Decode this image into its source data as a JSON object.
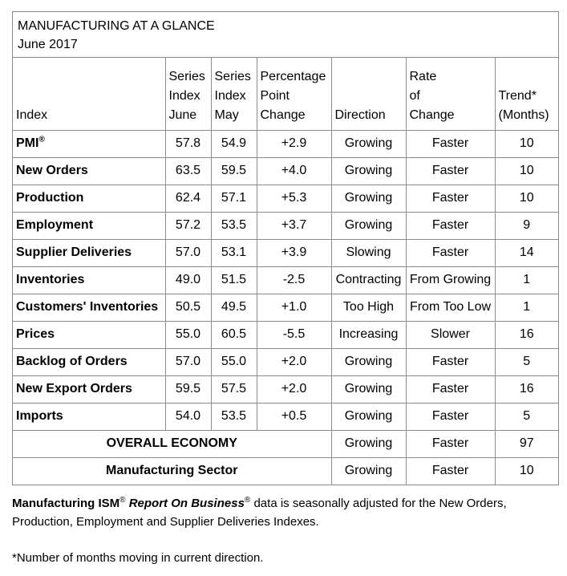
{
  "title": "MANUFACTURING AT A GLANCE",
  "subtitle": "June 2017",
  "headers": {
    "index": "Index",
    "june": [
      "Series",
      "Index",
      "June"
    ],
    "may": [
      "Series",
      "Index",
      "May"
    ],
    "change": [
      "Percentage",
      "Point",
      "Change"
    ],
    "direction": "Direction",
    "rate": [
      "Rate",
      "of",
      "Change"
    ],
    "trend": [
      "Trend*",
      "(Months)"
    ]
  },
  "rows": [
    {
      "index": "PMI",
      "sup": "®",
      "june": "57.8",
      "may": "54.9",
      "change": "+2.9",
      "direction": "Growing",
      "rate": "Faster",
      "trend": "10"
    },
    {
      "index": "New Orders",
      "sup": "",
      "june": "63.5",
      "may": "59.5",
      "change": "+4.0",
      "direction": "Growing",
      "rate": "Faster",
      "trend": "10"
    },
    {
      "index": "Production",
      "sup": "",
      "june": "62.4",
      "may": "57.1",
      "change": "+5.3",
      "direction": "Growing",
      "rate": "Faster",
      "trend": "10"
    },
    {
      "index": "Employment",
      "sup": "",
      "june": "57.2",
      "may": "53.5",
      "change": "+3.7",
      "direction": "Growing",
      "rate": "Faster",
      "trend": "9"
    },
    {
      "index": "Supplier Deliveries",
      "sup": "",
      "june": "57.0",
      "may": "53.1",
      "change": "+3.9",
      "direction": "Slowing",
      "rate": "Faster",
      "trend": "14"
    },
    {
      "index": "Inventories",
      "sup": "",
      "june": "49.0",
      "may": "51.5",
      "change": "-2.5",
      "direction": "Contracting",
      "rate": "From Growing",
      "trend": "1"
    },
    {
      "index": "Customers' Inventories",
      "sup": "",
      "june": "50.5",
      "may": "49.5",
      "change": "+1.0",
      "direction": "Too High",
      "rate": "From Too Low",
      "trend": "1"
    },
    {
      "index": "Prices",
      "sup": "",
      "june": "55.0",
      "may": "60.5",
      "change": "-5.5",
      "direction": "Increasing",
      "rate": "Slower",
      "trend": "16"
    },
    {
      "index": "Backlog of Orders",
      "sup": "",
      "june": "57.0",
      "may": "55.0",
      "change": "+2.0",
      "direction": "Growing",
      "rate": "Faster",
      "trend": "5"
    },
    {
      "index": "New Export Orders",
      "sup": "",
      "june": "59.5",
      "may": "57.5",
      "change": "+2.0",
      "direction": "Growing",
      "rate": "Faster",
      "trend": "16"
    },
    {
      "index": "Imports",
      "sup": "",
      "june": "54.0",
      "may": "53.5",
      "change": "+0.5",
      "direction": "Growing",
      "rate": "Faster",
      "trend": "5"
    }
  ],
  "summary": [
    {
      "label": "OVERALL ECONOMY",
      "direction": "Growing",
      "rate": "Faster",
      "trend": "97"
    },
    {
      "label": "Manufacturing Sector",
      "direction": "Growing",
      "rate": "Faster",
      "trend": "10"
    }
  ],
  "note": {
    "part1": "Manufacturing ISM",
    "sup1": "®",
    "italic": "Report On Business",
    "sup2": "®",
    "part2": " data is seasonally adjusted for the New Orders,",
    "line2": "Production, Employment and Supplier Deliveries Indexes."
  },
  "footnote": "*Number of months moving in current direction."
}
